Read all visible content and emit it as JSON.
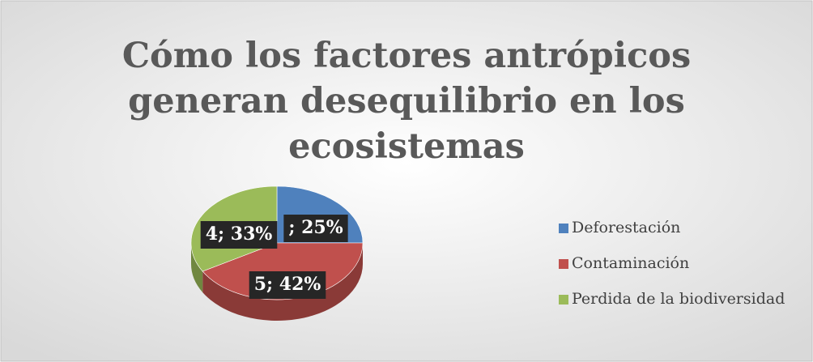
{
  "chart_data": {
    "type": "pie",
    "title": "Cómo los factores antrópicos generan desequilibrio en los ecosistemas",
    "categories": [
      "Deforestación",
      "Contaminación",
      "Perdida de la biodiversidad"
    ],
    "values": [
      3,
      5,
      4
    ],
    "value_labels": [
      "; 25%",
      "5; 42%",
      "4; 33%"
    ],
    "colors": [
      "#4f81bd",
      "#c0504d",
      "#9bbb59"
    ],
    "legend": "right"
  }
}
